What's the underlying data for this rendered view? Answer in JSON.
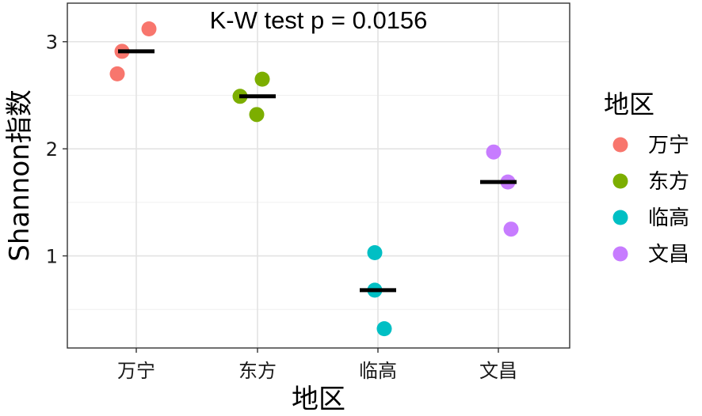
{
  "chart_data": {
    "type": "scatter",
    "title": "",
    "annotation": "K-W test p = 0.0156",
    "xlabel": "地区",
    "ylabel": "Shannon指数",
    "categories": [
      "万宁",
      "东方",
      "临高",
      "文昌"
    ],
    "yticks": [
      1,
      2,
      3
    ],
    "ylim": [
      0.14,
      3.36
    ],
    "grid": true,
    "legend_title": "地区",
    "legend_position": "right",
    "series": [
      {
        "name": "万宁",
        "color": "#F8766D",
        "values": [
          2.91,
          3.12,
          2.7
        ]
      },
      {
        "name": "东方",
        "color": "#7CAE00",
        "values": [
          2.49,
          2.65,
          2.32
        ]
      },
      {
        "name": "临高",
        "color": "#00BFC4",
        "values": [
          1.03,
          0.68,
          0.32
        ]
      },
      {
        "name": "文昌",
        "color": "#C77CFF",
        "values": [
          1.97,
          1.69,
          1.25
        ]
      }
    ],
    "medians": [
      2.91,
      2.49,
      0.68,
      1.69
    ]
  }
}
